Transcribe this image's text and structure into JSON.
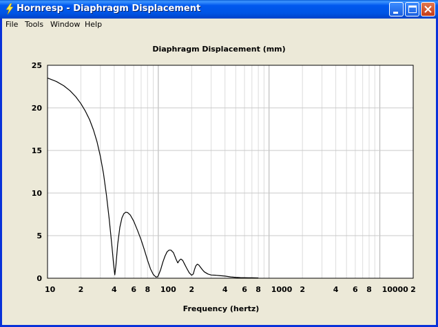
{
  "window": {
    "title": "Hornresp - Diaphragm Displacement",
    "icon": "lightning-icon",
    "buttons": [
      "minimize-icon",
      "maximize-icon",
      "close-icon"
    ]
  },
  "menu": {
    "items": [
      "File",
      "Tools",
      "Window",
      "Help"
    ]
  },
  "chart_data": {
    "type": "line",
    "title": "Diaphragm Displacement (mm)",
    "xlabel": "Frequency (hertz)",
    "ylabel": "",
    "xscale": "log",
    "xlim": [
      10,
      20000
    ],
    "ylim": [
      0,
      25
    ],
    "grid": true,
    "y_ticks": [
      "0",
      "5",
      "10",
      "15",
      "20",
      "25"
    ],
    "x_tick_labels": [
      {
        "value": 10,
        "label": "10"
      },
      {
        "value": 20,
        "label": "2"
      },
      {
        "value": 40,
        "label": "4"
      },
      {
        "value": 60,
        "label": "6"
      },
      {
        "value": 80,
        "label": "8"
      },
      {
        "value": 100,
        "label": "100"
      },
      {
        "value": 200,
        "label": "2"
      },
      {
        "value": 400,
        "label": "4"
      },
      {
        "value": 600,
        "label": "6"
      },
      {
        "value": 800,
        "label": "8"
      },
      {
        "value": 1000,
        "label": "1000"
      },
      {
        "value": 2000,
        "label": "2"
      },
      {
        "value": 4000,
        "label": "4"
      },
      {
        "value": 6000,
        "label": "6"
      },
      {
        "value": 8000,
        "label": "8"
      },
      {
        "value": 10000,
        "label": "10000"
      },
      {
        "value": 20000,
        "label": "2"
      }
    ],
    "series": [
      {
        "color": "#000000",
        "x": [
          10,
          12,
          14,
          16,
          18,
          20,
          22,
          24,
          26,
          28,
          30,
          32,
          34,
          36,
          38,
          39.5,
          40.5,
          41.5,
          43,
          45,
          47,
          49,
          51,
          53,
          56,
          60,
          65,
          70,
          75,
          80,
          85,
          90,
          95,
          98,
          100,
          105,
          110,
          115,
          120,
          125,
          130,
          137,
          145,
          150,
          155,
          160,
          166,
          172,
          180,
          190,
          200,
          207,
          212,
          218,
          225,
          232,
          240,
          250,
          260,
          280,
          300,
          330,
          360,
          400,
          450,
          500,
          550,
          600,
          650,
          700,
          750,
          800
        ],
        "y": [
          23.5,
          23.1,
          22.6,
          22.0,
          21.3,
          20.5,
          19.6,
          18.6,
          17.4,
          16.0,
          14.3,
          12.3,
          9.8,
          7.0,
          4.0,
          1.6,
          0.4,
          1.6,
          4.0,
          6.0,
          7.1,
          7.6,
          7.75,
          7.7,
          7.4,
          6.7,
          5.6,
          4.5,
          3.3,
          2.1,
          1.1,
          0.45,
          0.15,
          0.15,
          0.3,
          1.0,
          1.9,
          2.6,
          3.1,
          3.3,
          3.3,
          3.0,
          2.2,
          1.8,
          2.1,
          2.25,
          2.1,
          1.7,
          1.2,
          0.65,
          0.35,
          0.5,
          1.0,
          1.45,
          1.65,
          1.55,
          1.3,
          1.0,
          0.75,
          0.5,
          0.38,
          0.35,
          0.3,
          0.25,
          0.15,
          0.1,
          0.07,
          0.06,
          0.05,
          0.05,
          0.04,
          0.03
        ]
      }
    ]
  }
}
